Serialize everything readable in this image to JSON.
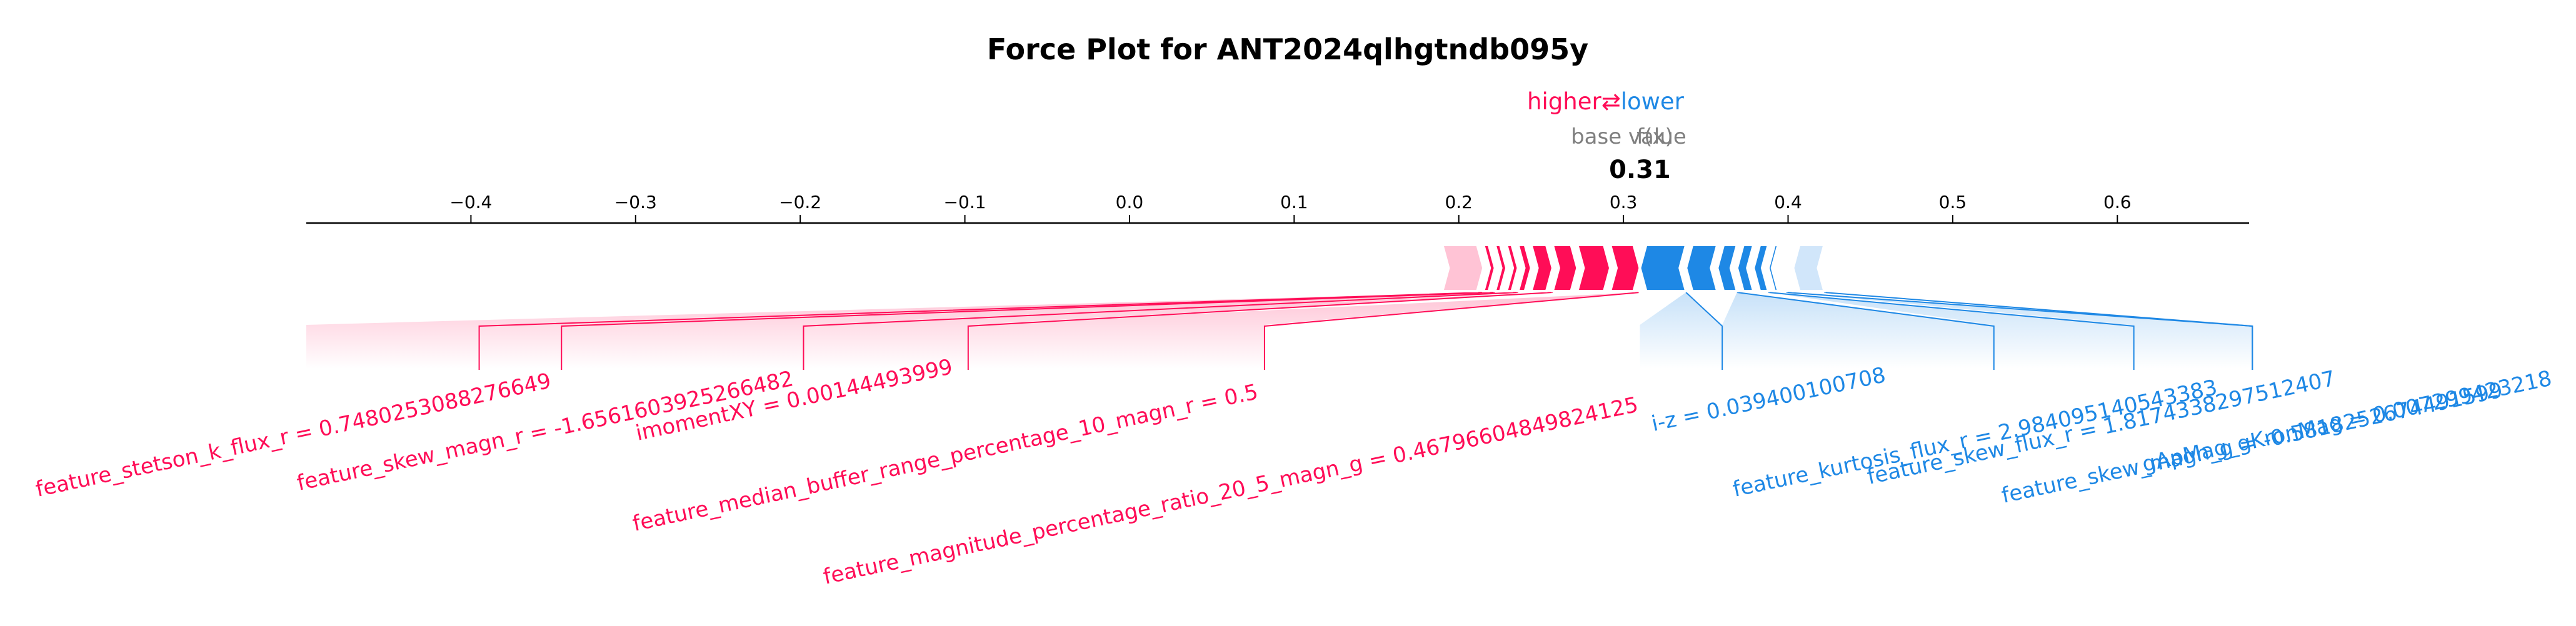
{
  "chart_data": {
    "type": "force",
    "title": "Force Plot for ANT2024qlhgtndb095y",
    "legend": {
      "higher": "higher",
      "arrow": "⇄",
      "lower": "lower"
    },
    "base_label": "base value",
    "fx_label": "f(x)",
    "output_value": 0.31,
    "output_label": "0.31",
    "xlim": [
      -0.5,
      0.68
    ],
    "ticks": [
      -0.4,
      -0.3,
      -0.2,
      -0.1,
      0.0,
      0.1,
      0.2,
      0.3,
      0.4,
      0.5,
      0.6
    ],
    "tick_labels": [
      "−0.4",
      "−0.3",
      "−0.2",
      "−0.1",
      "0.0",
      "0.1",
      "0.2",
      "0.3",
      "0.4",
      "0.5",
      "0.6"
    ],
    "positive_stack": [
      {
        "from": 0.19,
        "to": 0.215
      },
      {
        "from": 0.215,
        "to": 0.222
      },
      {
        "from": 0.222,
        "to": 0.229
      },
      {
        "from": 0.229,
        "to": 0.236
      },
      {
        "from": 0.236,
        "to": 0.244
      },
      {
        "from": 0.244,
        "to": 0.257
      },
      {
        "from": 0.257,
        "to": 0.272
      },
      {
        "from": 0.272,
        "to": 0.292
      },
      {
        "from": 0.292,
        "to": 0.31
      }
    ],
    "negative_stack": [
      {
        "from": 0.31,
        "to": 0.338
      },
      {
        "from": 0.338,
        "to": 0.357
      },
      {
        "from": 0.357,
        "to": 0.369
      },
      {
        "from": 0.369,
        "to": 0.379
      },
      {
        "from": 0.379,
        "to": 0.388
      },
      {
        "from": 0.388,
        "to": 0.394
      },
      {
        "from": 0.394,
        "to": 0.399
      },
      {
        "from": 0.399,
        "to": 0.403
      },
      {
        "from": 0.403,
        "to": 0.422
      }
    ],
    "features": [
      {
        "label": "feature_stetson_k_flux_r = 0.7480253088276649",
        "effect": "higher",
        "value": -0.395
      },
      {
        "label": "feature_skew_magn_r = -1.6561603925266482",
        "effect": "higher",
        "value": -0.345
      },
      {
        "label": "imomentXY = 0.00144493999",
        "effect": "higher",
        "value": -0.198
      },
      {
        "label": "feature_median_buffer_range_percentage_10_magn_r = 0.5",
        "effect": "higher",
        "value": -0.098
      },
      {
        "label": "feature_magnitude_percentage_ratio_20_5_magn_g = 0.46796604849824125",
        "effect": "higher",
        "value": 0.082
      },
      {
        "label": "i-z = 0.039400100708",
        "effect": "lower",
        "value": 0.36
      },
      {
        "label": "feature_kurtosis_flux_r = 2.984095140543383",
        "effect": "lower",
        "value": 0.525
      },
      {
        "label": "feature_skew_flux_r = 1.8174338297512407",
        "effect": "lower",
        "value": 0.61
      },
      {
        "label": "feature_skew_magn_g = -0.5818252674491599",
        "effect": "lower",
        "value": 0.682
      },
      {
        "label": "gApMag_gKronMag = 0.007299423218",
        "effect": "lower",
        "value": 0.682
      }
    ],
    "colors": {
      "higher": "#ff0d57",
      "higher_light": "#ffc3d5",
      "lower": "#1e88e5",
      "lower_light": "#d1e6fa",
      "axis": "#000000",
      "muted": "#7f7f7f"
    }
  }
}
